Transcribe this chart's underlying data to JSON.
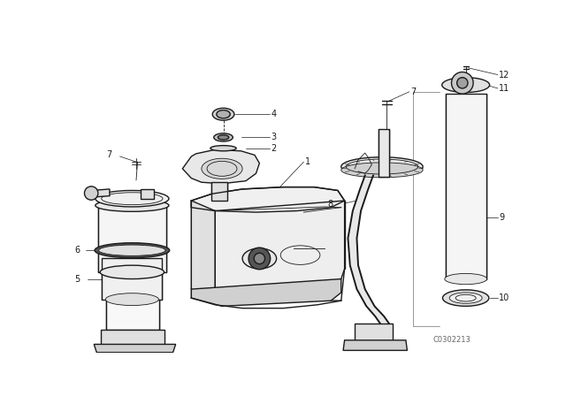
{
  "bg_color": "#ffffff",
  "line_color": "#1a1a1a",
  "fig_width": 6.4,
  "fig_height": 4.48,
  "dpi": 100,
  "watermark": "C0302213"
}
